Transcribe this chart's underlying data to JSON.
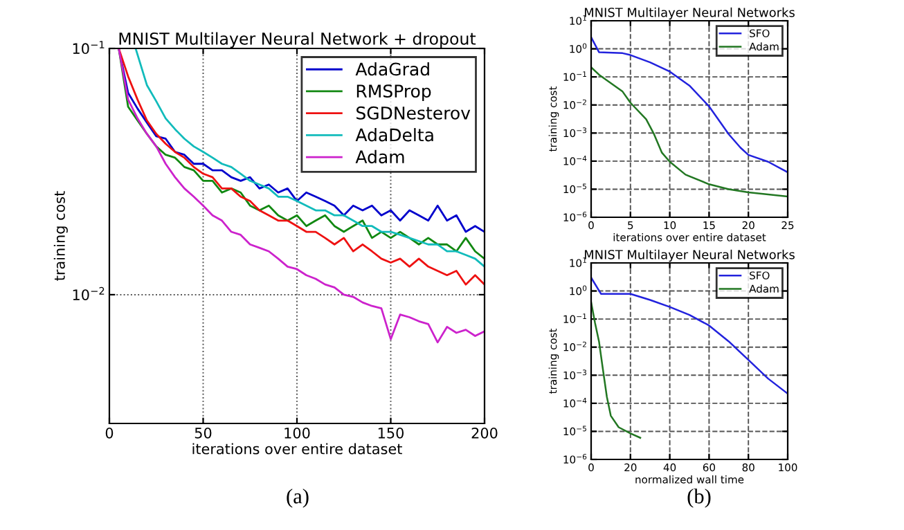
{
  "chart_data": [
    {
      "type": "line",
      "title": "MNIST Multilayer Neural Network + dropout",
      "xlabel": "iterations over entire dataset",
      "ylabel": "training cost",
      "log": "y",
      "grid": true,
      "legend": "top right",
      "xlim": [
        0,
        200
      ],
      "xticks": [
        0,
        50,
        100,
        150,
        200
      ],
      "ylim": [
        0.003,
        0.1
      ],
      "yticks": [
        {
          "value": 0.01,
          "label": "10$^{−2}$"
        },
        {
          "value": 0.1,
          "label": "10$^{−1}$"
        }
      ],
      "annotations": [
        "(a)"
      ],
      "series": [
        {
          "name": "AdaGrad",
          "color": "#0000cc",
          "x": [
            5,
            10,
            15,
            20,
            25,
            30,
            35,
            40,
            45,
            50,
            55,
            60,
            65,
            70,
            75,
            80,
            85,
            90,
            95,
            100,
            105,
            110,
            115,
            120,
            125,
            130,
            135,
            140,
            145,
            150,
            155,
            160,
            165,
            170,
            175,
            180,
            185,
            190,
            195,
            200
          ],
          "values": [
            0.1,
            0.066,
            0.057,
            0.05,
            0.044,
            0.043,
            0.038,
            0.037,
            0.034,
            0.034,
            0.032,
            0.032,
            0.03,
            0.029,
            0.03,
            0.027,
            0.028,
            0.026,
            0.027,
            0.024,
            0.026,
            0.025,
            0.024,
            0.023,
            0.021,
            0.023,
            0.022,
            0.023,
            0.021,
            0.022,
            0.02,
            0.022,
            0.021,
            0.02,
            0.023,
            0.02,
            0.021,
            0.018,
            0.019,
            0.018
          ]
        },
        {
          "name": "RMSProp",
          "color": "#118811",
          "x": [
            5,
            10,
            15,
            20,
            25,
            30,
            35,
            40,
            45,
            50,
            55,
            60,
            65,
            70,
            75,
            80,
            85,
            90,
            95,
            100,
            105,
            110,
            115,
            120,
            125,
            130,
            135,
            140,
            145,
            150,
            155,
            160,
            165,
            170,
            175,
            180,
            185,
            190,
            195,
            200
          ],
          "values": [
            0.1,
            0.058,
            0.051,
            0.045,
            0.04,
            0.037,
            0.036,
            0.033,
            0.032,
            0.029,
            0.029,
            0.026,
            0.027,
            0.026,
            0.023,
            0.022,
            0.023,
            0.021,
            0.02,
            0.021,
            0.019,
            0.02,
            0.021,
            0.019,
            0.018,
            0.019,
            0.02,
            0.017,
            0.018,
            0.017,
            0.018,
            0.017,
            0.016,
            0.017,
            0.016,
            0.016,
            0.015,
            0.017,
            0.015,
            0.014
          ]
        },
        {
          "name": "SGDNesterov",
          "color": "#ee1111",
          "x": [
            5,
            10,
            15,
            20,
            25,
            30,
            35,
            40,
            45,
            50,
            55,
            60,
            65,
            70,
            75,
            80,
            85,
            90,
            95,
            100,
            105,
            110,
            115,
            120,
            125,
            130,
            135,
            140,
            145,
            150,
            155,
            160,
            165,
            170,
            175,
            180,
            185,
            190,
            195,
            200
          ],
          "values": [
            0.1,
            0.077,
            0.062,
            0.051,
            0.045,
            0.041,
            0.038,
            0.036,
            0.033,
            0.031,
            0.03,
            0.027,
            0.027,
            0.025,
            0.024,
            0.022,
            0.021,
            0.02,
            0.02,
            0.019,
            0.018,
            0.018,
            0.017,
            0.016,
            0.017,
            0.015,
            0.016,
            0.015,
            0.014,
            0.0135,
            0.014,
            0.013,
            0.014,
            0.013,
            0.0125,
            0.012,
            0.0125,
            0.011,
            0.012,
            0.011
          ]
        },
        {
          "name": "AdaDelta",
          "color": "#11bbbb",
          "x": [
            14,
            20,
            25,
            30,
            35,
            40,
            45,
            50,
            55,
            60,
            65,
            70,
            75,
            80,
            85,
            90,
            95,
            100,
            105,
            110,
            115,
            120,
            125,
            130,
            135,
            140,
            145,
            150,
            155,
            160,
            165,
            170,
            175,
            180,
            185,
            190,
            195,
            200
          ],
          "values": [
            0.1,
            0.071,
            0.061,
            0.052,
            0.047,
            0.043,
            0.04,
            0.038,
            0.036,
            0.034,
            0.033,
            0.031,
            0.029,
            0.028,
            0.027,
            0.025,
            0.025,
            0.024,
            0.023,
            0.022,
            0.022,
            0.021,
            0.021,
            0.02,
            0.019,
            0.019,
            0.018,
            0.018,
            0.0175,
            0.017,
            0.0165,
            0.016,
            0.016,
            0.015,
            0.015,
            0.0145,
            0.014,
            0.013
          ]
        },
        {
          "name": "Adam",
          "color": "#cc22cc",
          "x": [
            5,
            10,
            15,
            20,
            25,
            30,
            35,
            40,
            45,
            50,
            55,
            60,
            65,
            70,
            75,
            80,
            85,
            90,
            95,
            100,
            105,
            110,
            115,
            120,
            125,
            130,
            135,
            140,
            145,
            150,
            155,
            160,
            165,
            170,
            175,
            180,
            185,
            190,
            195,
            200
          ],
          "values": [
            0.1,
            0.062,
            0.052,
            0.045,
            0.04,
            0.034,
            0.03,
            0.027,
            0.025,
            0.023,
            0.021,
            0.02,
            0.018,
            0.0175,
            0.016,
            0.0155,
            0.015,
            0.014,
            0.013,
            0.0127,
            0.012,
            0.0116,
            0.011,
            0.0107,
            0.01,
            0.0098,
            0.0093,
            0.009,
            0.0088,
            0.0066,
            0.0083,
            0.0081,
            0.0078,
            0.0076,
            0.0064,
            0.0074,
            0.007,
            0.0072,
            0.0068,
            0.0071
          ]
        }
      ]
    },
    {
      "type": "line",
      "title": "MNIST Multilayer Neural Networks",
      "xlabel": "iterations over entire dataset",
      "ylabel": "training cost",
      "log": "y",
      "grid": true,
      "legend": "top right",
      "xlim": [
        0,
        25
      ],
      "xticks": [
        0,
        5,
        10,
        15,
        20,
        25
      ],
      "ylim": [
        1e-06,
        10
      ],
      "yticks": [
        {
          "value": 1e-06,
          "label": "10$^{−6}$"
        },
        {
          "value": 1e-05,
          "label": "10$^{−5}$"
        },
        {
          "value": 0.0001,
          "label": "10$^{−4}$"
        },
        {
          "value": 0.001,
          "label": "10$^{−3}$"
        },
        {
          "value": 0.01,
          "label": "10$^{−2}$"
        },
        {
          "value": 0.1,
          "label": "10$^{−1}$"
        },
        {
          "value": 1,
          "label": "10$^{0}$"
        },
        {
          "value": 10,
          "label": "10$^{1}$"
        }
      ],
      "series": [
        {
          "name": "SFO",
          "color": "#2222dd",
          "x": [
            0,
            1,
            4,
            5,
            7.5,
            10,
            12.5,
            15,
            17.5,
            19,
            20,
            22.5,
            25
          ],
          "values": [
            2.6,
            0.76,
            0.7,
            0.6,
            0.33,
            0.155,
            0.049,
            0.0089,
            0.00091,
            0.0003,
            0.000166,
            9.5e-05,
            4e-05
          ]
        },
        {
          "name": "Adam",
          "color": "#227722",
          "x": [
            0,
            1,
            4,
            5,
            7,
            8,
            9,
            10,
            12,
            15,
            17.5,
            20,
            25
          ],
          "values": [
            0.22,
            0.12,
            0.03,
            0.012,
            0.0031,
            0.00091,
            0.0002,
            9.5e-05,
            3.3e-05,
            1.5e-05,
            1e-05,
            7.7e-06,
            5.5e-06
          ]
        }
      ]
    },
    {
      "type": "line",
      "title": "MNIST Multilayer Neural Networks",
      "xlabel": "normalized wall time",
      "ylabel": "training cost",
      "log": "y",
      "grid": true,
      "legend": "top right",
      "xlim": [
        0,
        100
      ],
      "xticks": [
        0,
        20,
        40,
        60,
        80,
        100
      ],
      "ylim": [
        1e-06,
        10
      ],
      "yticks": [
        {
          "value": 1e-06,
          "label": "10$^{−6}$"
        },
        {
          "value": 1e-05,
          "label": "10$^{−5}$"
        },
        {
          "value": 0.0001,
          "label": "10$^{−4}$"
        },
        {
          "value": 0.001,
          "label": "10$^{−3}$"
        },
        {
          "value": 0.01,
          "label": "10$^{−2}$"
        },
        {
          "value": 0.1,
          "label": "10$^{−1}$"
        },
        {
          "value": 1,
          "label": "10$^{0}$"
        },
        {
          "value": 10,
          "label": "10$^{1}$"
        }
      ],
      "annotations": [
        "(b)"
      ],
      "series": [
        {
          "name": "SFO",
          "color": "#2222dd",
          "x": [
            0,
            5,
            20,
            30,
            40,
            50,
            60,
            70,
            80,
            90,
            100
          ],
          "values": [
            3,
            0.79,
            0.79,
            0.48,
            0.27,
            0.14,
            0.059,
            0.016,
            0.0035,
            0.00076,
            0.00022
          ]
        },
        {
          "name": "Adam",
          "color": "#227722",
          "x": [
            0,
            2,
            4,
            6,
            8,
            10,
            14,
            20,
            25
          ],
          "values": [
            0.4,
            0.072,
            0.016,
            0.0016,
            0.00017,
            3.6e-05,
            1.4e-05,
            8.5e-06,
            5.9e-06
          ]
        }
      ]
    }
  ]
}
